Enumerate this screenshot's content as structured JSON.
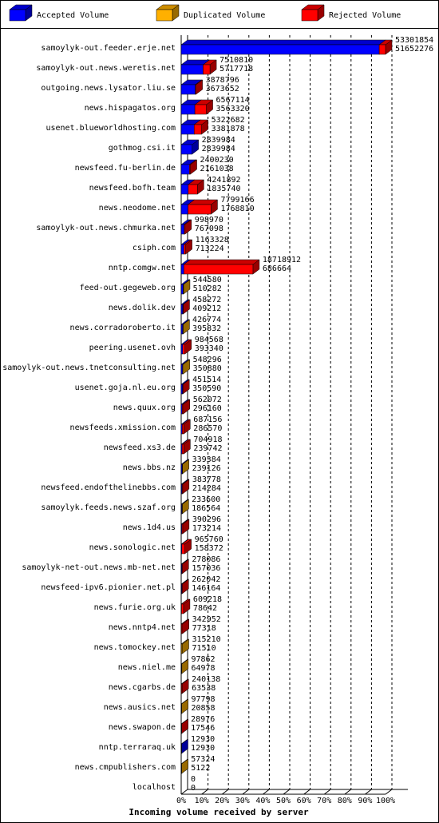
{
  "chart_data": {
    "type": "stacked-bar-3d",
    "x_label": "Incoming volume received by server",
    "categories": [
      "samoylyk-out.feeder.erje.net",
      "samoylyk-out.news.weretis.net",
      "outgoing.news.lysator.liu.se",
      "news.hispagatos.org",
      "usenet.blueworldhosting.com",
      "gothmog.csi.it",
      "newsfeed.fu-berlin.de",
      "newsfeed.bofh.team",
      "news.neodome.net",
      "samoylyk-out.news.chmurka.net",
      "csiph.com",
      "nntp.comgw.net",
      "feed-out.gegeweb.org",
      "news.dolik.dev",
      "news.corradoroberto.it",
      "peering.usenet.ovh",
      "samoylyk-out.news.tnetconsulting.net",
      "usenet.goja.nl.eu.org",
      "news.quux.org",
      "newsfeeds.xmission.com",
      "newsfeed.xs3.de",
      "news.bbs.nz",
      "newsfeed.endofthelinebbs.com",
      "samoylyk.feeds.news.szaf.org",
      "news.1d4.us",
      "news.sonologic.net",
      "samoylyk-net-out.news.mb-net.net",
      "newsfeed-ipv6.pionier.net.pl",
      "news.furie.org.uk",
      "news.nntp4.net",
      "news.tomockey.net",
      "news.niel.me",
      "news.cgarbs.de",
      "news.ausics.net",
      "news.swapon.de",
      "nntp.terraraq.uk",
      "news.cmpublishers.com",
      "localhost"
    ],
    "totals": [
      53301854,
      7510810,
      3878796,
      6567114,
      5322682,
      2839984,
      2400230,
      4241892,
      7799166,
      998970,
      1163328,
      18718912,
      544580,
      458272,
      426774,
      984568,
      548296,
      451514,
      562072,
      687156,
      704918,
      339384,
      383778,
      233600,
      390296,
      965760,
      278086,
      262042,
      609218,
      342952,
      315210,
      97862,
      240138,
      97798,
      28976,
      12930,
      57324,
      0
    ],
    "series": [
      {
        "name": "Accepted Volume",
        "color": "#0000ff",
        "values": [
          51652276,
          5717718,
          3673652,
          3563320,
          3381878,
          2839984,
          2161038,
          1835740,
          1768810,
          767098,
          713224,
          686664,
          510282,
          409212,
          395832,
          393340,
          350880,
          350590,
          296160,
          286570,
          239742,
          239126,
          214284,
          186564,
          173214,
          158372,
          157036,
          146164,
          78642,
          77318,
          71510,
          64978,
          63538,
          20858,
          17546,
          12930,
          5122,
          0
        ]
      },
      {
        "name": "Duplicated Volume",
        "color": "#ffb000",
        "values": [
          0,
          0,
          0,
          0,
          0,
          0,
          0,
          0,
          0,
          0,
          0,
          0,
          34298,
          0,
          30942,
          0,
          197416,
          0,
          0,
          0,
          0,
          100258,
          0,
          47036,
          0,
          0,
          0,
          0,
          0,
          0,
          243700,
          32884,
          0,
          76940,
          0,
          0,
          52202,
          0
        ]
      },
      {
        "name": "Rejected Volume",
        "color": "#ff0000",
        "values": [
          1649578,
          1793092,
          205144,
          3003794,
          1940804,
          0,
          239192,
          2406152,
          6030356,
          231872,
          450104,
          18032248,
          0,
          49060,
          0,
          591228,
          0,
          100924,
          265912,
          400586,
          465176,
          0,
          169494,
          0,
          217082,
          807388,
          121050,
          115878,
          530576,
          265634,
          0,
          0,
          176600,
          0,
          11430,
          0,
          0,
          0
        ]
      }
    ],
    "xlim": [
      0,
      53301854
    ],
    "xticks": [
      {
        "value": 0,
        "label": "0%"
      },
      {
        "value": 5330185.4,
        "label": "10%"
      },
      {
        "value": 10660370.8,
        "label": "20%"
      },
      {
        "value": 15990556.2,
        "label": "30%"
      },
      {
        "value": 21320741.6,
        "label": "40%"
      },
      {
        "value": 26650927,
        "label": "50%"
      },
      {
        "value": 31981112.4,
        "label": "60%"
      },
      {
        "value": 37311297.8,
        "label": "70%"
      },
      {
        "value": 42641483.2,
        "label": "80%"
      },
      {
        "value": 47971668.6,
        "label": "90%"
      },
      {
        "value": 53301854,
        "label": "100%"
      }
    ],
    "grid": true
  }
}
